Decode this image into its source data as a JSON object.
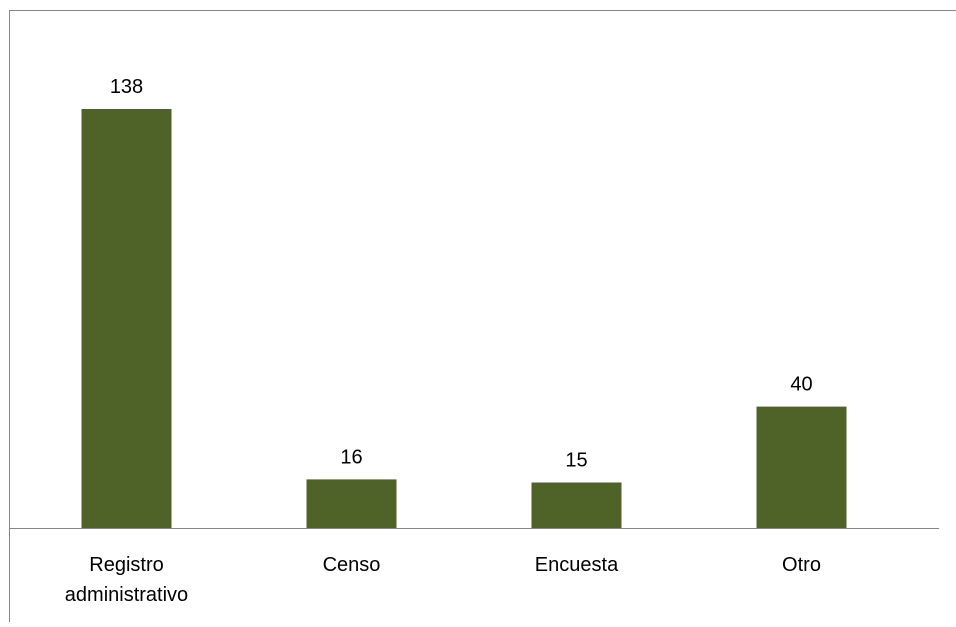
{
  "chart_data": {
    "type": "bar",
    "title": "",
    "xlabel": "",
    "ylabel": "",
    "categories": [
      [
        "Registro",
        "administrativo"
      ],
      [
        "Censo"
      ],
      [
        "Encuesta"
      ],
      [
        "Otro"
      ]
    ],
    "values": [
      138,
      16,
      15,
      40
    ],
    "data_labels": [
      "138",
      "16",
      "15",
      "40"
    ],
    "ylim": [
      0,
      138
    ],
    "grid": false,
    "legend": "none",
    "bar_color": "#4F6228",
    "axis_color": "#868686",
    "border_color": "#868686"
  }
}
